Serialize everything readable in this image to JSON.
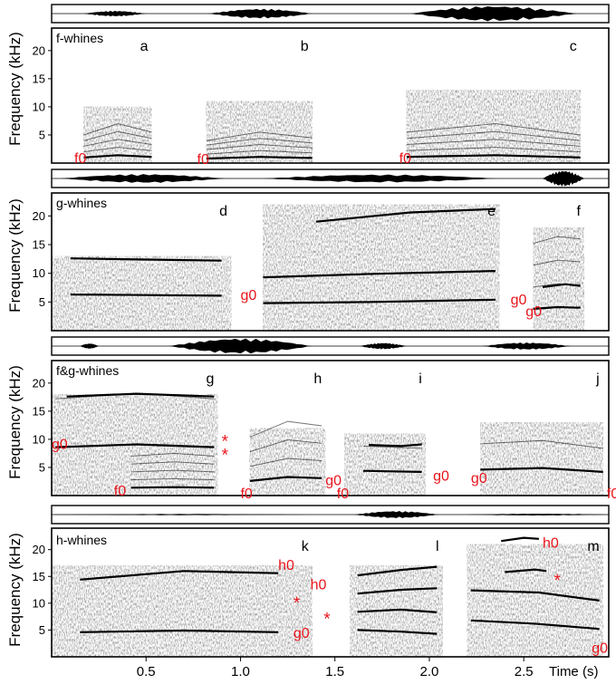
{
  "chart_data": {
    "type": "heatmap",
    "description_kind": "spectrograms",
    "ylabel": "Frequency (kHz)",
    "xlabel": "Time (s)",
    "x_ticks": [
      "0.5",
      "1.0",
      "1.5",
      "2.0",
      "2.5"
    ],
    "x_tick_values": [
      0.5,
      1.0,
      1.5,
      2.0,
      2.5
    ],
    "xlim": [
      0.0,
      2.95
    ],
    "ylim": [
      0,
      24
    ],
    "colors": {
      "annotation": "#e8141b",
      "ink": "#000000"
    },
    "panels": [
      {
        "name": "f-whines",
        "y_ticks": [
          "5",
          "10",
          "15",
          "20"
        ],
        "y_tick_values": [
          5,
          10,
          15,
          20
        ],
        "segments": [
          {
            "letter": "a",
            "t_start": 0.17,
            "t_end": 0.53,
            "top_khz": 10,
            "contours": [
              {
                "label": "f0",
                "points": [
                  [
                    0.17,
                    1.0
                  ],
                  [
                    0.35,
                    1.4
                  ],
                  [
                    0.53,
                    1.1
                  ]
                ]
              }
            ]
          },
          {
            "letter": "b",
            "t_start": 0.82,
            "t_end": 1.38,
            "top_khz": 11,
            "contours": [
              {
                "label": "f0",
                "points": [
                  [
                    0.82,
                    0.8
                  ],
                  [
                    1.1,
                    1.1
                  ],
                  [
                    1.38,
                    0.9
                  ]
                ]
              }
            ]
          },
          {
            "letter": "c",
            "t_start": 1.88,
            "t_end": 2.8,
            "top_khz": 13,
            "contours": [
              {
                "label": "f0",
                "points": [
                  [
                    1.88,
                    1.1
                  ],
                  [
                    2.35,
                    1.4
                  ],
                  [
                    2.8,
                    1.0
                  ]
                ]
              }
            ]
          }
        ],
        "annotations": [
          {
            "text": "f0",
            "t": 0.12,
            "khz": 1.0
          },
          {
            "text": "f0",
            "t": 0.77,
            "khz": 0.8
          },
          {
            "text": "f0",
            "t": 1.84,
            "khz": 1.0
          }
        ]
      },
      {
        "name": "g-whines",
        "y_ticks": [
          "5",
          "10",
          "15",
          "20"
        ],
        "y_tick_values": [
          5,
          10,
          15,
          20
        ],
        "segments": [
          {
            "letter": "d",
            "t_start": 0.0,
            "t_end": 0.95,
            "top_khz": 13,
            "contours": [
              {
                "label": "g0",
                "points": [
                  [
                    0.1,
                    6.3
                  ],
                  [
                    0.5,
                    6.2
                  ],
                  [
                    0.9,
                    6.1
                  ]
                ]
              },
              {
                "label": "",
                "points": [
                  [
                    0.1,
                    12.6
                  ],
                  [
                    0.5,
                    12.4
                  ],
                  [
                    0.9,
                    12.2
                  ]
                ]
              }
            ]
          },
          {
            "letter": "e",
            "t_start": 1.12,
            "t_end": 2.37,
            "top_khz": 22,
            "contours": [
              {
                "label": "",
                "points": [
                  [
                    1.12,
                    4.8
                  ],
                  [
                    1.7,
                    5.0
                  ],
                  [
                    2.35,
                    5.4
                  ]
                ]
              },
              {
                "label": "",
                "points": [
                  [
                    1.12,
                    9.3
                  ],
                  [
                    1.7,
                    9.9
                  ],
                  [
                    2.35,
                    10.4
                  ]
                ]
              },
              {
                "label": "",
                "points": [
                  [
                    1.4,
                    19.0
                  ],
                  [
                    1.9,
                    20.6
                  ],
                  [
                    2.35,
                    21.2
                  ]
                ]
              }
            ]
          },
          {
            "letter": "f",
            "t_start": 2.55,
            "t_end": 2.82,
            "top_khz": 18,
            "contours": [
              {
                "label": "g0",
                "points": [
                  [
                    2.55,
                    3.8
                  ],
                  [
                    2.68,
                    4.1
                  ],
                  [
                    2.8,
                    4.0
                  ]
                ]
              },
              {
                "label": "",
                "points": [
                  [
                    2.6,
                    7.6
                  ],
                  [
                    2.72,
                    8.1
                  ],
                  [
                    2.8,
                    7.8
                  ]
                ]
              }
            ]
          }
        ],
        "annotations": [
          {
            "text": "g0",
            "t": 1.0,
            "khz": 6.3
          },
          {
            "text": "g0",
            "t": 2.43,
            "khz": 5.5
          },
          {
            "text": "g0",
            "t": 2.51,
            "khz": 3.5
          }
        ]
      },
      {
        "name": "f&g-whines",
        "y_ticks": [
          "5",
          "10",
          "15",
          "20"
        ],
        "y_tick_values": [
          5,
          10,
          15,
          20
        ],
        "segments": [
          {
            "letter": "g",
            "t_start": 0.0,
            "t_end": 0.88,
            "top_khz": 18,
            "contours": [
              {
                "label": "g0",
                "points": [
                  [
                    0.02,
                    8.6
                  ],
                  [
                    0.45,
                    9.1
                  ],
                  [
                    0.86,
                    8.6
                  ]
                ]
              },
              {
                "label": "f0",
                "points": [
                  [
                    0.42,
                    1.4
                  ],
                  [
                    0.65,
                    1.5
                  ],
                  [
                    0.86,
                    1.4
                  ]
                ]
              },
              {
                "label": "",
                "points": [
                  [
                    0.08,
                    17.6
                  ],
                  [
                    0.45,
                    18.1
                  ],
                  [
                    0.86,
                    17.6
                  ]
                ]
              }
            ]
          },
          {
            "letter": "h",
            "t_start": 1.05,
            "t_end": 1.45,
            "top_khz": 12,
            "contours": [
              {
                "label": "g0",
                "points": [
                  [
                    1.05,
                    2.6
                  ],
                  [
                    1.25,
                    3.3
                  ],
                  [
                    1.43,
                    3.1
                  ]
                ]
              }
            ]
          },
          {
            "letter": "i",
            "t_start": 1.55,
            "t_end": 1.98,
            "top_khz": 11,
            "contours": [
              {
                "label": "g0",
                "points": [
                  [
                    1.65,
                    4.4
                  ],
                  [
                    1.8,
                    4.3
                  ],
                  [
                    1.96,
                    4.2
                  ]
                ]
              },
              {
                "label": "",
                "points": [
                  [
                    1.68,
                    9.0
                  ],
                  [
                    1.85,
                    8.8
                  ],
                  [
                    1.96,
                    9.1
                  ]
                ]
              }
            ]
          },
          {
            "letter": "j",
            "t_start": 2.27,
            "t_end": 2.92,
            "top_khz": 13,
            "contours": [
              {
                "label": "g0",
                "points": [
                  [
                    2.27,
                    4.6
                  ],
                  [
                    2.6,
                    4.9
                  ],
                  [
                    2.92,
                    4.2
                  ]
                ]
              }
            ]
          }
        ],
        "annotations": [
          {
            "text": "g0",
            "t": 0.0,
            "khz": 9.3
          },
          {
            "text": "*",
            "t": 0.9,
            "khz": 9.6
          },
          {
            "text": "*",
            "t": 0.9,
            "khz": 7.2
          },
          {
            "text": "f0",
            "t": 0.33,
            "khz": 1.0
          },
          {
            "text": "f0",
            "t": 1.0,
            "khz": 0.5
          },
          {
            "text": "g0",
            "t": 1.45,
            "khz": 2.8
          },
          {
            "text": "f0",
            "t": 1.51,
            "khz": 0.5
          },
          {
            "text": "g0",
            "t": 2.02,
            "khz": 3.6
          },
          {
            "text": "g0",
            "t": 2.22,
            "khz": 3.2
          },
          {
            "text": "f0",
            "t": 2.94,
            "khz": 0.5
          }
        ]
      },
      {
        "name": "h-whines",
        "y_ticks": [
          "5",
          "10",
          "15",
          "20"
        ],
        "y_tick_values": [
          5,
          10,
          15,
          20
        ],
        "segments": [
          {
            "letter": "k",
            "t_start": 0.0,
            "t_end": 1.38,
            "top_khz": 17,
            "contours": [
              {
                "label": "h0",
                "points": [
                  [
                    0.15,
                    14.4
                  ],
                  [
                    0.7,
                    16.0
                  ],
                  [
                    1.2,
                    15.6
                  ]
                ]
              },
              {
                "label": "",
                "points": [
                  [
                    0.15,
                    4.6
                  ],
                  [
                    0.7,
                    4.9
                  ],
                  [
                    1.2,
                    4.6
                  ]
                ]
              }
            ]
          },
          {
            "letter": "l",
            "t_start": 1.58,
            "t_end": 2.07,
            "top_khz": 17,
            "contours": [
              {
                "label": "",
                "points": [
                  [
                    1.62,
                    15.2
                  ],
                  [
                    1.85,
                    16.2
                  ],
                  [
                    2.04,
                    16.8
                  ]
                ]
              },
              {
                "label": "",
                "points": [
                  [
                    1.62,
                    11.8
                  ],
                  [
                    1.85,
                    12.5
                  ],
                  [
                    2.04,
                    12.8
                  ]
                ]
              },
              {
                "label": "",
                "points": [
                  [
                    1.62,
                    8.4
                  ],
                  [
                    1.85,
                    8.8
                  ],
                  [
                    2.04,
                    8.3
                  ]
                ]
              },
              {
                "label": "",
                "points": [
                  [
                    1.62,
                    5.0
                  ],
                  [
                    1.85,
                    4.7
                  ],
                  [
                    2.04,
                    4.3
                  ]
                ]
              }
            ]
          },
          {
            "letter": "m",
            "t_start": 2.2,
            "t_end": 2.92,
            "top_khz": 21,
            "contours": [
              {
                "label": "h0",
                "points": [
                  [
                    2.38,
                    21.6
                  ],
                  [
                    2.5,
                    22.2
                  ],
                  [
                    2.58,
                    22.0
                  ]
                ]
              },
              {
                "label": "",
                "points": [
                  [
                    2.22,
                    12.4
                  ],
                  [
                    2.58,
                    12.0
                  ],
                  [
                    2.9,
                    10.5
                  ]
                ]
              },
              {
                "label": "",
                "points": [
                  [
                    2.22,
                    6.8
                  ],
                  [
                    2.55,
                    6.2
                  ],
                  [
                    2.9,
                    5.2
                  ]
                ]
              },
              {
                "label": "",
                "points": [
                  [
                    2.4,
                    15.8
                  ],
                  [
                    2.56,
                    16.3
                  ],
                  [
                    2.62,
                    16.0
                  ]
                ]
              }
            ]
          }
        ],
        "annotations": [
          {
            "text": "h0",
            "t": 1.2,
            "khz": 17.2
          },
          {
            "text": "*",
            "t": 1.28,
            "khz": 10.0
          },
          {
            "text": "g0",
            "t": 1.28,
            "khz": 4.6
          },
          {
            "text": "h0",
            "t": 1.37,
            "khz": 13.6
          },
          {
            "text": "*",
            "t": 1.44,
            "khz": 7.0
          },
          {
            "text": "h0",
            "t": 2.6,
            "khz": 21.4
          },
          {
            "text": "*",
            "t": 2.66,
            "khz": 14.2
          },
          {
            "text": "g0",
            "t": 2.86,
            "khz": 1.8
          }
        ]
      }
    ],
    "waveforms": [
      {
        "panel": "f-whines",
        "bursts": [
          {
            "t_start": 0.17,
            "t_end": 0.5,
            "amp": 0.35
          },
          {
            "t_start": 0.83,
            "t_end": 1.38,
            "amp": 0.6
          },
          {
            "t_start": 1.9,
            "t_end": 2.78,
            "amp": 0.95
          }
        ]
      },
      {
        "panel": "g-whines",
        "bursts": [
          {
            "t_start": 0.05,
            "t_end": 0.92,
            "amp": 0.55
          },
          {
            "t_start": 1.12,
            "t_end": 2.36,
            "amp": 0.5
          },
          {
            "t_start": 2.6,
            "t_end": 2.82,
            "amp": 1.0
          }
        ]
      },
      {
        "panel": "f&g-whines",
        "bursts": [
          {
            "t_start": 0.15,
            "t_end": 0.25,
            "amp": 0.35
          },
          {
            "t_start": 0.62,
            "t_end": 1.38,
            "amp": 0.95
          },
          {
            "t_start": 1.63,
            "t_end": 1.88,
            "amp": 0.4
          },
          {
            "t_start": 2.28,
            "t_end": 2.75,
            "amp": 0.45
          }
        ]
      },
      {
        "panel": "h-whines",
        "bursts": [
          {
            "t_start": 0.0,
            "t_end": 1.35,
            "amp": 0.08
          },
          {
            "t_start": 1.6,
            "t_end": 2.05,
            "amp": 0.45
          },
          {
            "t_start": 2.2,
            "t_end": 2.95,
            "amp": 0.12
          }
        ]
      }
    ]
  }
}
